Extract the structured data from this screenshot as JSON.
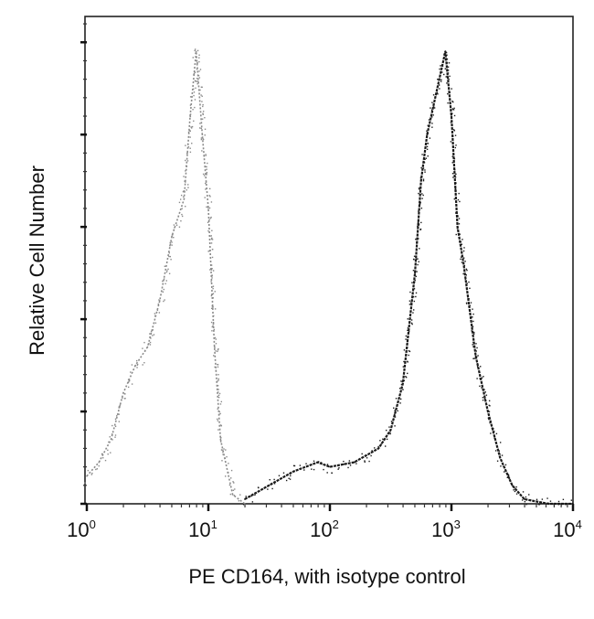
{
  "chart_data": {
    "type": "line",
    "title": "",
    "xlabel": "PE CD164, with isotype control",
    "ylabel": "Relative Cell Number",
    "xscale": "log",
    "xlim": [
      1,
      10000
    ],
    "ylim": [
      0,
      5.28
    ],
    "x_ticks": [
      {
        "base": "10",
        "exp": "0"
      },
      {
        "base": "10",
        "exp": "1"
      },
      {
        "base": "10",
        "exp": "2"
      },
      {
        "base": "10",
        "exp": "3"
      },
      {
        "base": "10",
        "exp": "4"
      }
    ],
    "y_major_ticks": [
      0,
      1,
      2,
      3,
      4,
      5
    ],
    "y_tick_labels_shown": false,
    "grid": false,
    "series": [
      {
        "name": "isotype control",
        "color": "#8a8a8a",
        "log10_x": [
          0,
          0.1,
          0.2,
          0.3,
          0.4,
          0.5,
          0.6,
          0.7,
          0.8,
          0.85,
          0.9,
          0.95,
          1.0,
          1.05,
          1.1,
          1.2,
          1.3
        ],
        "y": [
          0.3,
          0.45,
          0.7,
          1.2,
          1.5,
          1.7,
          2.2,
          2.9,
          3.3,
          4.2,
          4.9,
          4.0,
          3.2,
          1.7,
          0.7,
          0.1,
          0
        ]
      },
      {
        "name": "PE CD164",
        "color": "#1a1a1a",
        "log10_x": [
          1.3,
          1.5,
          1.7,
          1.9,
          2.0,
          2.2,
          2.4,
          2.5,
          2.6,
          2.7,
          2.75,
          2.8,
          2.9,
          2.95,
          3.0,
          3.05,
          3.1,
          3.2,
          3.3,
          3.4,
          3.5,
          3.6,
          3.8,
          4.0
        ],
        "y": [
          0.05,
          0.2,
          0.35,
          0.45,
          0.4,
          0.45,
          0.6,
          0.8,
          1.3,
          2.5,
          3.5,
          4.0,
          4.6,
          4.9,
          4.2,
          3.0,
          2.6,
          1.6,
          1.0,
          0.5,
          0.2,
          0.05,
          0,
          0
        ]
      }
    ]
  }
}
